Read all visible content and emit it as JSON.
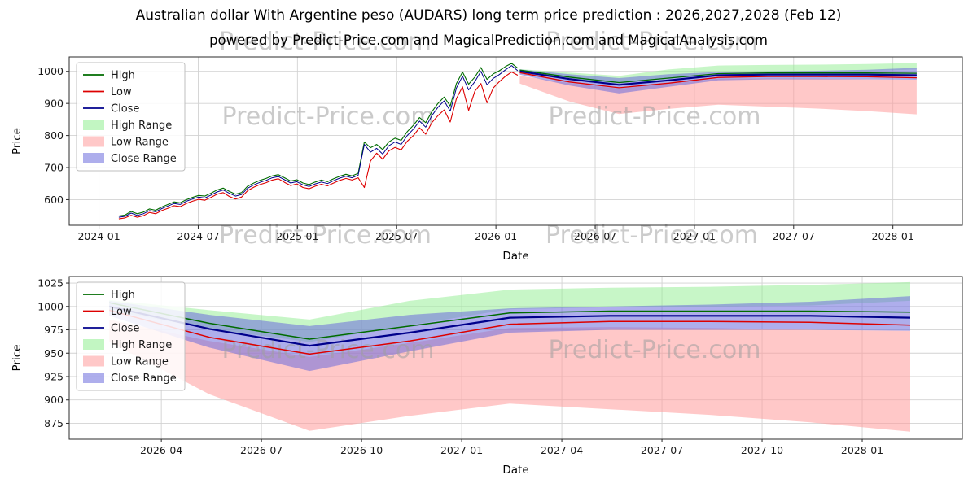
{
  "page": {
    "watermark": "Predict-Price.com",
    "background": "#ffffff"
  },
  "chart_data": [
    {
      "type": "line",
      "name": "overview",
      "title": "Australian dollar With Argentine peso (AUDARS) long term price prediction : 2026,2027,2028 (Feb 12)",
      "subtitle": "powered by Predict-Price.com and MagicalPrediction.com and MagicalAnalysis.com",
      "xlabel": "Date",
      "ylabel": "Price",
      "x_range": [
        2023.85,
        2028.35
      ],
      "y_range": [
        520,
        1045
      ],
      "grid": true,
      "legend_loc": "upper left",
      "x_ticks": [
        {
          "v": 2024.0,
          "label": "2024-01"
        },
        {
          "v": 2024.5,
          "label": "2024-07"
        },
        {
          "v": 2025.0,
          "label": "2025-01"
        },
        {
          "v": 2025.5,
          "label": "2025-07"
        },
        {
          "v": 2026.0,
          "label": "2026-01"
        },
        {
          "v": 2026.5,
          "label": "2026-07"
        },
        {
          "v": 2027.0,
          "label": "2027-01"
        },
        {
          "v": 2027.5,
          "label": "2027-07"
        },
        {
          "v": 2028.0,
          "label": "2028-01"
        }
      ],
      "y_ticks": [
        {
          "v": 600,
          "label": "600"
        },
        {
          "v": 700,
          "label": "700"
        },
        {
          "v": 800,
          "label": "800"
        },
        {
          "v": 900,
          "label": "900"
        },
        {
          "v": 1000,
          "label": "1000"
        }
      ],
      "legend": [
        {
          "label": "High",
          "type": "line",
          "color": "#006b00"
        },
        {
          "label": "Low",
          "type": "line",
          "color": "#dd0000"
        },
        {
          "label": "Close",
          "type": "line",
          "color": "#00008b"
        },
        {
          "label": "High Range",
          "type": "patch",
          "color": "#90ee90"
        },
        {
          "label": "Low Range",
          "type": "patch",
          "color": "#ff9a9a"
        },
        {
          "label": "Close Range",
          "type": "patch",
          "color": "#6b6bdc"
        }
      ],
      "bands": [
        {
          "name": "high-range",
          "x_lin": [
            2026.12,
            2028.12
          ],
          "upper": [
            1007,
            996,
            986,
            1006,
            1018,
            1020,
            1021,
            1023,
            1026
          ],
          "lower": [
            996,
            976,
            962,
            980,
            997,
            999,
            1000,
            1001,
            1006
          ],
          "color": "#90ee90",
          "opacity": 0.5
        },
        {
          "name": "low-range",
          "x_lin": [
            2026.12,
            2028.12
          ],
          "upper": [
            986,
            963,
            946,
            961,
            977,
            978,
            977,
            975,
            974
          ],
          "lower": [
            962,
            906,
            867,
            883,
            896,
            890,
            884,
            876,
            866
          ],
          "color": "#ff9a9a",
          "opacity": 0.55
        },
        {
          "name": "close-range",
          "x_lin": [
            2026.12,
            2028.12
          ],
          "upper": [
            1006,
            991,
            979,
            991,
            998,
            1000,
            1002,
            1005,
            1011
          ],
          "lower": [
            990,
            956,
            931,
            952,
            972,
            975,
            975,
            975,
            974
          ],
          "color": "#6b6bdc",
          "opacity": 0.55
        }
      ],
      "series": [
        {
          "name": "low-historical",
          "x_lin": [
            2024.1,
            2026.11
          ],
          "color": "#dd0000",
          "width": 1.1,
          "y": [
            540,
            543,
            551,
            545,
            550,
            560,
            556,
            566,
            573,
            581,
            578,
            588,
            595,
            601,
            598,
            607,
            617,
            622,
            610,
            602,
            608,
            628,
            639,
            647,
            653,
            661,
            665,
            654,
            644,
            649,
            638,
            634,
            642,
            648,
            643,
            652,
            660,
            666,
            661,
            668,
            638,
            720,
            745,
            726,
            752,
            763,
            755,
            782,
            800,
            824,
            804,
            840,
            862,
            880,
            842,
            915,
            952,
            878,
            938,
            962,
            902,
            948,
            968,
            985,
            998,
            988
          ]
        },
        {
          "name": "high-historical",
          "x_lin": [
            2024.1,
            2026.11
          ],
          "color": "#006b00",
          "width": 1.1,
          "y": [
            549,
            552,
            563,
            556,
            561,
            571,
            567,
            577,
            585,
            593,
            590,
            600,
            607,
            613,
            611,
            620,
            630,
            636,
            626,
            617,
            622,
            642,
            652,
            660,
            666,
            674,
            678,
            668,
            658,
            662,
            652,
            647,
            655,
            661,
            656,
            665,
            673,
            679,
            674,
            682,
            780,
            762,
            772,
            756,
            780,
            792,
            785,
            812,
            832,
            856,
            840,
            874,
            900,
            920,
            892,
            962,
            998,
            960,
            982,
            1012,
            975,
            992,
            1002,
            1015,
            1025,
            1010
          ]
        },
        {
          "name": "close-historical",
          "x_lin": [
            2024.1,
            2026.11
          ],
          "color": "#00008b",
          "width": 1.0,
          "y": [
            545,
            548,
            558,
            551,
            556,
            566,
            562,
            572,
            580,
            588,
            585,
            595,
            602,
            608,
            605,
            614,
            624,
            630,
            620,
            611,
            616,
            636,
            646,
            654,
            660,
            668,
            672,
            662,
            652,
            656,
            646,
            641,
            649,
            655,
            650,
            659,
            667,
            673,
            668,
            676,
            772,
            748,
            760,
            742,
            768,
            780,
            772,
            800,
            820,
            845,
            826,
            862,
            888,
            908,
            876,
            948,
            985,
            942,
            968,
            1000,
            958,
            978,
            990,
            1005,
            1018,
            1002
          ]
        },
        {
          "name": "low-forecast",
          "x_lin": [
            2026.12,
            2028.12
          ],
          "color": "#dd0000",
          "width": 1.3,
          "y": [
            996,
            967,
            949,
            963,
            981,
            984,
            984,
            983,
            980
          ]
        },
        {
          "name": "high-forecast",
          "x_lin": [
            2026.12,
            2028.12
          ],
          "color": "#006b00",
          "width": 1.3,
          "y": [
            1004,
            982,
            965,
            979,
            993,
            995,
            995,
            995,
            994
          ]
        },
        {
          "name": "close-forecast",
          "x_lin": [
            2026.12,
            2028.12
          ],
          "color": "#00008b",
          "width": 2.2,
          "y": [
            1000,
            976,
            958,
            972,
            988,
            990,
            990,
            990,
            988
          ]
        }
      ],
      "watermarks": [
        {
          "fx": 0.29,
          "fy": 0.4
        },
        {
          "fx": 0.655,
          "fy": 0.4
        }
      ]
    },
    {
      "type": "line",
      "name": "forecast-zoom",
      "xlabel": "Date",
      "ylabel": "Price",
      "x_range": [
        2026.02,
        2028.25
      ],
      "y_range": [
        858,
        1032
      ],
      "grid": true,
      "legend_loc": "upper left",
      "x_ticks": [
        {
          "v": 2026.25,
          "label": "2026-04"
        },
        {
          "v": 2026.5,
          "label": "2026-07"
        },
        {
          "v": 2026.75,
          "label": "2026-10"
        },
        {
          "v": 2027.0,
          "label": "2027-01"
        },
        {
          "v": 2027.25,
          "label": "2027-04"
        },
        {
          "v": 2027.5,
          "label": "2027-07"
        },
        {
          "v": 2027.75,
          "label": "2027-10"
        },
        {
          "v": 2028.0,
          "label": "2028-01"
        }
      ],
      "y_ticks": [
        {
          "v": 875,
          "label": "875"
        },
        {
          "v": 900,
          "label": "900"
        },
        {
          "v": 925,
          "label": "925"
        },
        {
          "v": 950,
          "label": "950"
        },
        {
          "v": 975,
          "label": "975"
        },
        {
          "v": 1000,
          "label": "1000"
        },
        {
          "v": 1025,
          "label": "1025"
        }
      ],
      "legend": [
        {
          "label": "High",
          "type": "line",
          "color": "#006b00"
        },
        {
          "label": "Low",
          "type": "line",
          "color": "#dd0000"
        },
        {
          "label": "Close",
          "type": "line",
          "color": "#00008b"
        },
        {
          "label": "High Range",
          "type": "patch",
          "color": "#90ee90"
        },
        {
          "label": "Low Range",
          "type": "patch",
          "color": "#ff9a9a"
        },
        {
          "label": "Close Range",
          "type": "patch",
          "color": "#6b6bdc"
        }
      ],
      "bands": [
        {
          "name": "high-range",
          "x_lin": [
            2026.12,
            2028.12
          ],
          "upper": [
            1007,
            996,
            986,
            1006,
            1018,
            1020,
            1021,
            1023,
            1026
          ],
          "lower": [
            996,
            976,
            962,
            980,
            997,
            999,
            1000,
            1001,
            1006
          ],
          "color": "#90ee90",
          "opacity": 0.5
        },
        {
          "name": "low-range",
          "x_lin": [
            2026.12,
            2028.12
          ],
          "upper": [
            986,
            963,
            946,
            961,
            977,
            978,
            977,
            975,
            974
          ],
          "lower": [
            962,
            906,
            867,
            883,
            896,
            890,
            884,
            876,
            866
          ],
          "color": "#ff9a9a",
          "opacity": 0.55
        },
        {
          "name": "close-range",
          "x_lin": [
            2026.12,
            2028.12
          ],
          "upper": [
            1006,
            991,
            979,
            991,
            998,
            1000,
            1002,
            1005,
            1011
          ],
          "lower": [
            990,
            956,
            931,
            952,
            972,
            975,
            975,
            975,
            974
          ],
          "color": "#6b6bdc",
          "opacity": 0.55
        }
      ],
      "series": [
        {
          "name": "low-forecast",
          "x_lin": [
            2026.12,
            2028.12
          ],
          "color": "#dd0000",
          "width": 1.5,
          "y": [
            996,
            967,
            949,
            963,
            981,
            984,
            984,
            983,
            980
          ]
        },
        {
          "name": "high-forecast",
          "x_lin": [
            2026.12,
            2028.12
          ],
          "color": "#006b00",
          "width": 1.5,
          "y": [
            1004,
            982,
            965,
            979,
            993,
            995,
            995,
            995,
            994
          ]
        },
        {
          "name": "close-forecast",
          "x_lin": [
            2026.12,
            2028.12
          ],
          "color": "#00008b",
          "width": 2.2,
          "y": [
            1000,
            976,
            958,
            972,
            988,
            990,
            990,
            990,
            988
          ]
        }
      ],
      "watermarks": [
        {
          "fx": 0.29,
          "fy": 0.5
        },
        {
          "fx": 0.655,
          "fy": 0.5
        }
      ]
    }
  ]
}
